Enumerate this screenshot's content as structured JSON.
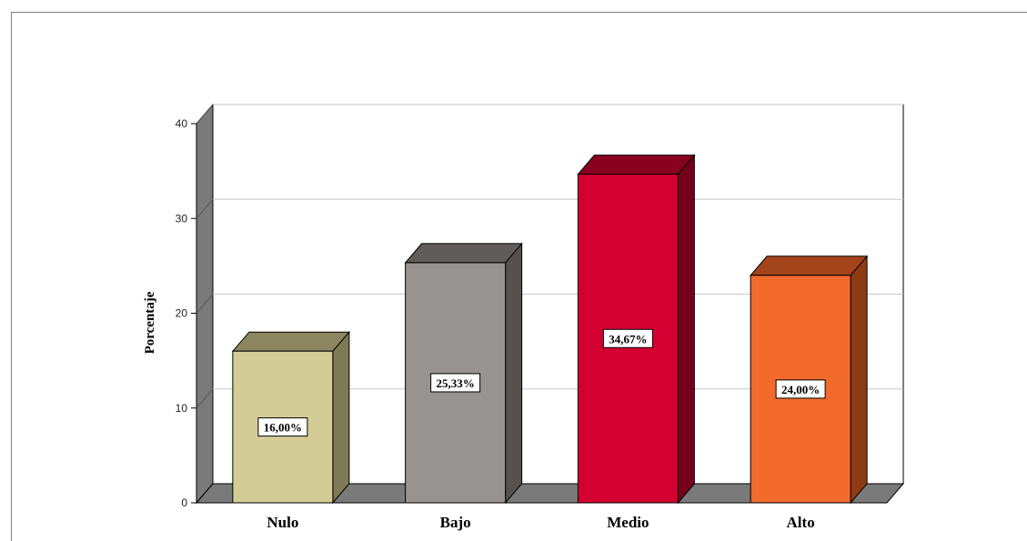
{
  "chart_data": {
    "type": "bar",
    "style": "3d",
    "categories": [
      "Nulo",
      "Bajo",
      "Medio",
      "Alto"
    ],
    "values": [
      16.0,
      25.33,
      34.67,
      24.0
    ],
    "data_labels": [
      "16,00%",
      "25,33%",
      "34,67%",
      "24,00%"
    ],
    "ylabel": "Porcentaje",
    "xlabel": "",
    "ylim": [
      0,
      40
    ],
    "yticks": [
      0,
      10,
      20,
      30,
      40
    ],
    "grid": true,
    "colors": {
      "Nulo": {
        "front": "#d3cc96",
        "top": "#8b8660",
        "side": "#7d7a55"
      },
      "Bajo": {
        "front": "#979390",
        "top": "#5f5c5a",
        "side": "#54514f"
      },
      "Medio": {
        "front": "#d40031",
        "top": "#880020",
        "side": "#74001b"
      },
      "Alto": {
        "front": "#f26a2c",
        "top": "#a4441a",
        "side": "#8e3a15"
      },
      "wall": "#7a7a7a",
      "grid": "#c8c8c8"
    }
  }
}
